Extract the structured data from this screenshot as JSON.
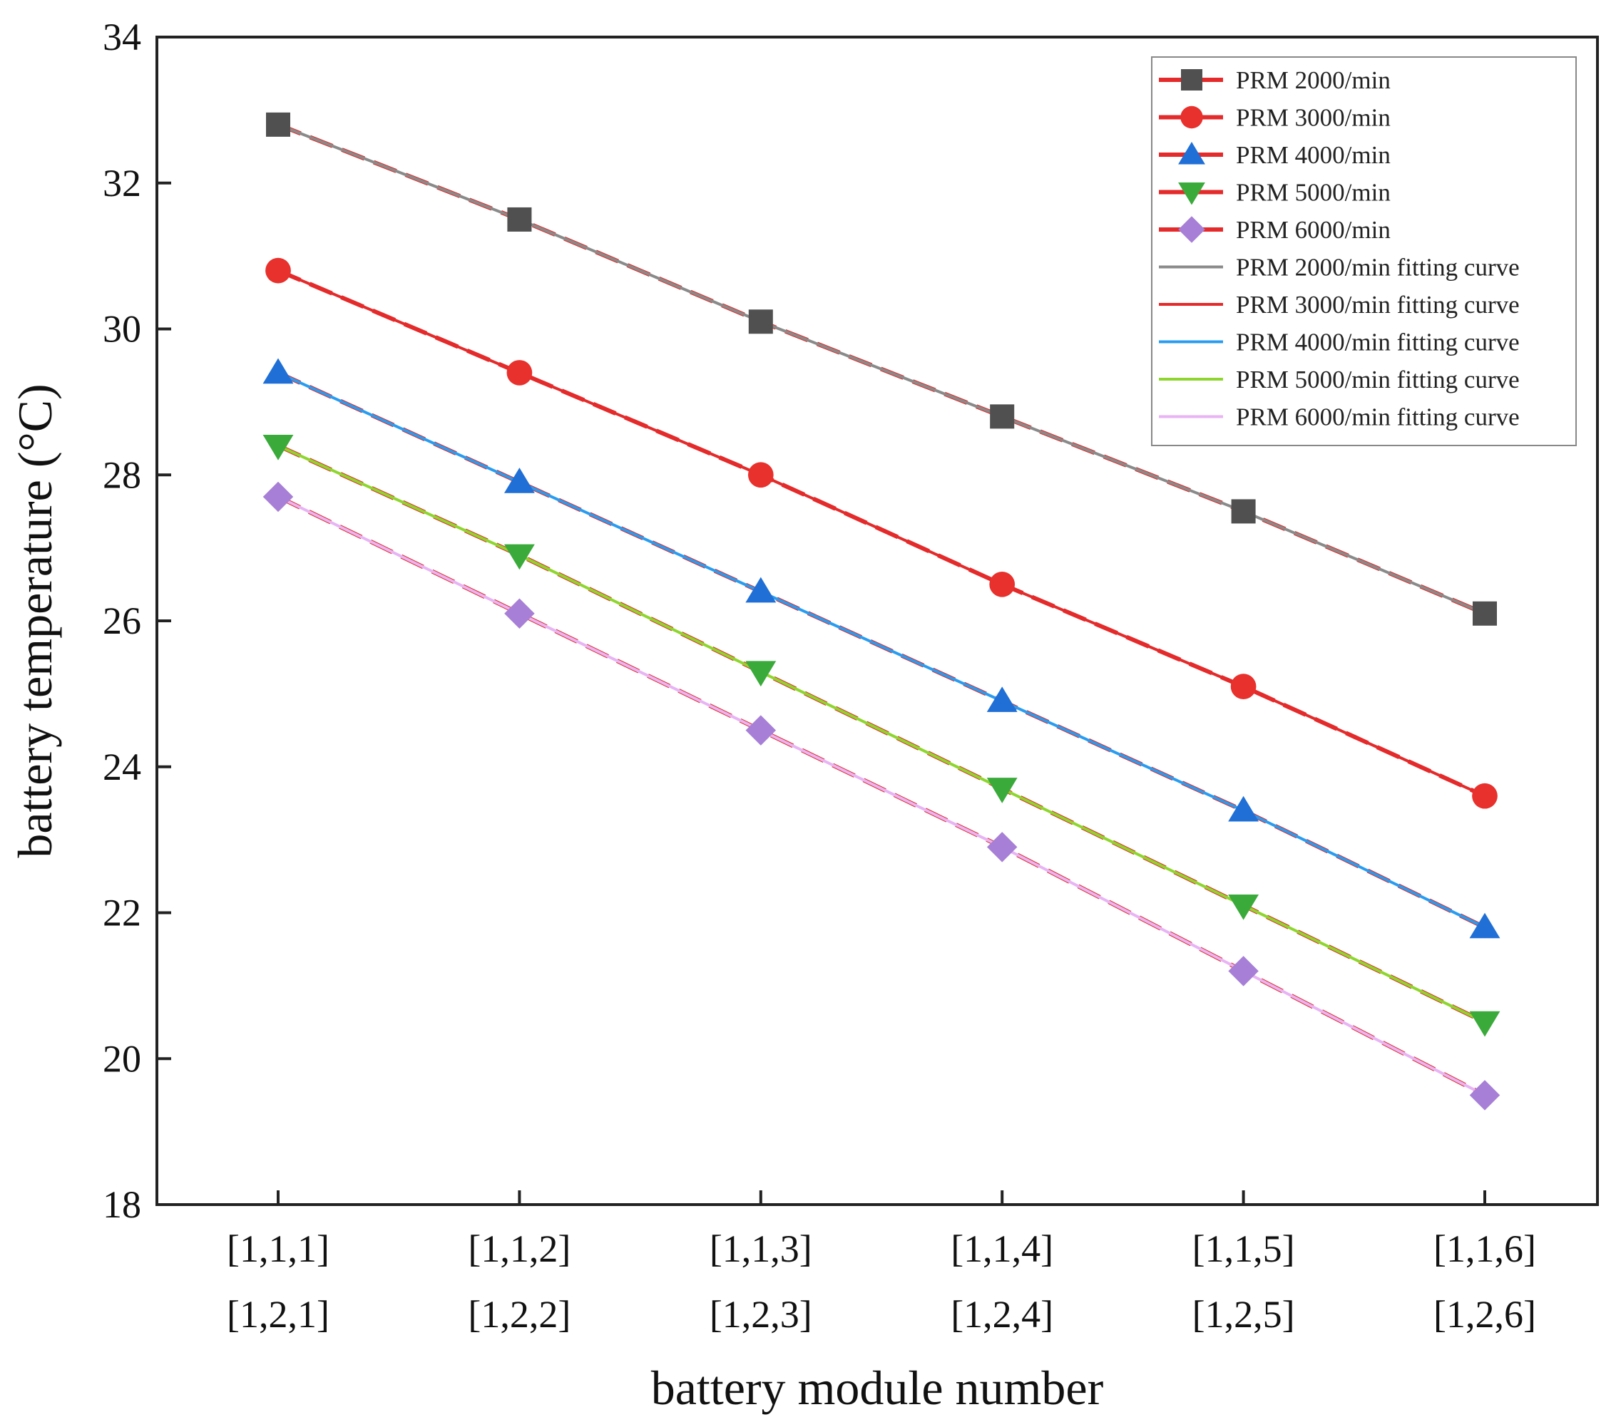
{
  "chart_data": {
    "type": "line",
    "xlabel": "battery module number",
    "ylabel": "battery temperature (°C)",
    "ylim": [
      18,
      34
    ],
    "yticks": [
      18,
      20,
      22,
      24,
      26,
      28,
      30,
      32,
      34
    ],
    "categories": [
      [
        "[1,1,1]",
        "[1,2,1]"
      ],
      [
        "[1,1,2]",
        "[1,2,2]"
      ],
      [
        "[1,1,3]",
        "[1,2,3]"
      ],
      [
        "[1,1,4]",
        "[1,2,4]"
      ],
      [
        "[1,1,5]",
        "[1,2,5]"
      ],
      [
        "[1,1,6]",
        "[1,2,6]"
      ]
    ],
    "series": [
      {
        "name": "PRM 2000/min",
        "marker": "square",
        "color": "#505050",
        "values": [
          32.8,
          31.5,
          30.1,
          28.8,
          27.5,
          26.1
        ]
      },
      {
        "name": "PRM 3000/min",
        "marker": "circle",
        "color": "#e8302c",
        "values": [
          30.8,
          29.4,
          28.0,
          26.5,
          25.1,
          23.6
        ]
      },
      {
        "name": "PRM 4000/min",
        "marker": "triangle-up",
        "color": "#1f6fd6",
        "values": [
          29.4,
          27.9,
          26.4,
          24.9,
          23.4,
          21.8
        ]
      },
      {
        "name": "PRM 5000/min",
        "marker": "triangle-down",
        "color": "#3aaa3a",
        "values": [
          28.4,
          26.9,
          25.3,
          23.7,
          22.1,
          20.5
        ]
      },
      {
        "name": "PRM 6000/min",
        "marker": "diamond",
        "color": "#a77fd6",
        "values": [
          27.7,
          26.1,
          24.5,
          22.9,
          21.2,
          19.5
        ]
      }
    ],
    "fitting_curves": [
      {
        "name": "PRM 2000/min fitting curve",
        "color": "#8a8a8a"
      },
      {
        "name": "PRM 3000/min fitting curve",
        "color": "#e42a2a"
      },
      {
        "name": "PRM 4000/min fitting curve",
        "color": "#2a9cf0"
      },
      {
        "name": "PRM 5000/min fitting curve",
        "color": "#8ed62e"
      },
      {
        "name": "PRM 6000/min fitting curve",
        "color": "#e8b4f4"
      }
    ],
    "dashed_line_color": "#e42a2a",
    "legend_position": "top-right",
    "grid": false
  }
}
